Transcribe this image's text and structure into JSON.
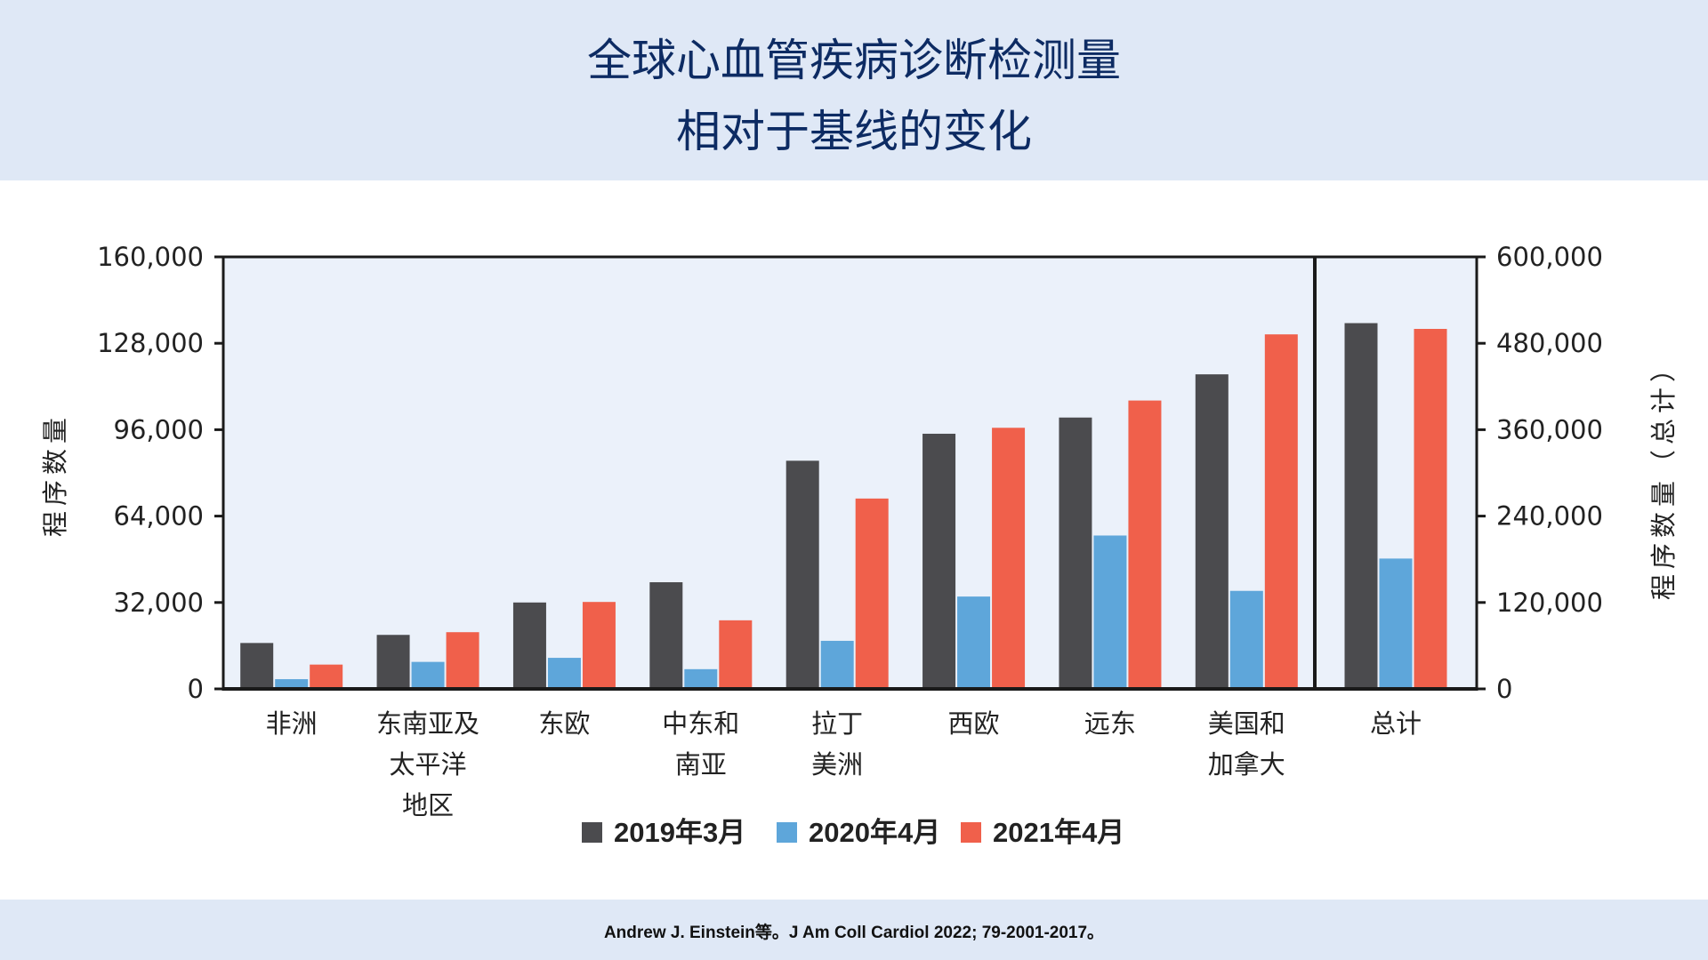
{
  "title": {
    "line1": "全球心血管疾病诊断检测量",
    "line2": "相对于基线的变化"
  },
  "footer": {
    "citation": "Andrew J. Einstein等。J Am Coll Cardiol 2022; 79-2001-2017。"
  },
  "chart_data": {
    "type": "bar",
    "title": "全球心血管疾病诊断检测量 相对于基线的变化",
    "ylabel": "程序数量",
    "ylabel_right": "程序数量（总计）",
    "ylim": [
      0,
      160000
    ],
    "ylim_right": [
      0,
      600000
    ],
    "yticks": [
      "0",
      "32,000",
      "64,000",
      "96,000",
      "128,000",
      "160,000"
    ],
    "yticks_right": [
      "0",
      "120,000",
      "240,000",
      "360,000",
      "480,000",
      "600,000"
    ],
    "categories": [
      [
        "非洲"
      ],
      [
        "东南亚及",
        "太平洋",
        "地区"
      ],
      [
        "东欧"
      ],
      [
        "中东和",
        "南亚"
      ],
      [
        "拉丁",
        "美洲"
      ],
      [
        "西欧"
      ],
      [
        "远东"
      ],
      [
        "美国和",
        "加拿大"
      ]
    ],
    "total_category": [
      "总计"
    ],
    "legend_position": "bottom",
    "grid": false,
    "series": [
      {
        "name": "2019年3月",
        "color": "#4b4b4e",
        "values": [
          17000,
          20000,
          32000,
          39500,
          84500,
          94500,
          100500,
          116500
        ],
        "total": 508000
      },
      {
        "name": "2020年4月",
        "color": "#5ea6da",
        "values": [
          3600,
          10000,
          11500,
          7300,
          17800,
          34200,
          56800,
          36300
        ],
        "total": 181000
      },
      {
        "name": "2021年4月",
        "color": "#f0604b",
        "values": [
          9000,
          21000,
          32200,
          25400,
          70500,
          96700,
          106800,
          131300
        ],
        "total": 500000
      }
    ]
  }
}
